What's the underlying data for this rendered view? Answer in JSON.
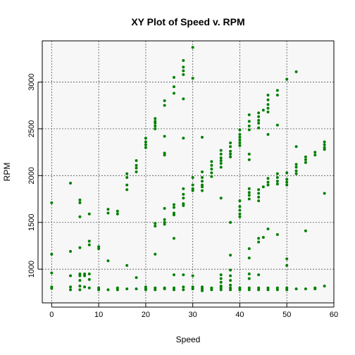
{
  "chart_data": {
    "type": "scatter",
    "title": "XY Plot of Speed v. RPM",
    "xlabel": "Speed",
    "ylabel": "RPM",
    "xlim": [
      -2,
      60
    ],
    "ylim": [
      640,
      3440
    ],
    "xticks": [
      0,
      10,
      20,
      30,
      40,
      50,
      60
    ],
    "yticks": [
      1000,
      1500,
      2000,
      2500,
      3000
    ],
    "grid": true,
    "point_color": "#008000",
    "panel_background": "#f7f7f7",
    "series": [
      {
        "points": [
          [
            0,
            1710
          ],
          [
            0,
            1160
          ],
          [
            0,
            960
          ],
          [
            0,
            810
          ],
          [
            0,
            795
          ],
          [
            4,
            1920
          ],
          [
            4,
            1190
          ],
          [
            4,
            930
          ],
          [
            4,
            810
          ],
          [
            4,
            780
          ],
          [
            6,
            1740
          ],
          [
            6,
            1710
          ],
          [
            6,
            1560
          ],
          [
            6,
            1230
          ],
          [
            6,
            950
          ],
          [
            6,
            930
          ],
          [
            6,
            880
          ],
          [
            6,
            820
          ],
          [
            6,
            780
          ],
          [
            7,
            950
          ],
          [
            7,
            930
          ],
          [
            7,
            810
          ],
          [
            8,
            1590
          ],
          [
            8,
            1300
          ],
          [
            8,
            1260
          ],
          [
            8,
            950
          ],
          [
            8,
            890
          ],
          [
            8,
            800
          ],
          [
            10,
            1240
          ],
          [
            10,
            1220
          ],
          [
            10,
            800
          ],
          [
            10,
            780
          ],
          [
            12,
            1640
          ],
          [
            12,
            1600
          ],
          [
            12,
            1090
          ],
          [
            12,
            780
          ],
          [
            14,
            1620
          ],
          [
            14,
            1590
          ],
          [
            14,
            800
          ],
          [
            14,
            780
          ],
          [
            16,
            2020
          ],
          [
            16,
            1980
          ],
          [
            16,
            1900
          ],
          [
            16,
            1850
          ],
          [
            16,
            1040
          ],
          [
            16,
            790
          ],
          [
            18,
            2160
          ],
          [
            18,
            2110
          ],
          [
            18,
            2080
          ],
          [
            18,
            2040
          ],
          [
            18,
            910
          ],
          [
            18,
            790
          ],
          [
            20,
            2400
          ],
          [
            20,
            2360
          ],
          [
            20,
            2330
          ],
          [
            20,
            2300
          ],
          [
            20,
            810
          ],
          [
            20,
            790
          ],
          [
            20,
            780
          ],
          [
            22,
            2610
          ],
          [
            22,
            2580
          ],
          [
            22,
            2560
          ],
          [
            22,
            2530
          ],
          [
            22,
            2500
          ],
          [
            22,
            1490
          ],
          [
            22,
            1460
          ],
          [
            22,
            1160
          ],
          [
            22,
            800
          ],
          [
            22,
            780
          ],
          [
            24,
            2800
          ],
          [
            24,
            2750
          ],
          [
            24,
            2420
          ],
          [
            24,
            2240
          ],
          [
            24,
            2220
          ],
          [
            24,
            1650
          ],
          [
            24,
            1530
          ],
          [
            24,
            1500
          ],
          [
            24,
            1480
          ],
          [
            24,
            800
          ],
          [
            24,
            790
          ],
          [
            26,
            3050
          ],
          [
            26,
            2950
          ],
          [
            26,
            2880
          ],
          [
            26,
            1690
          ],
          [
            26,
            1660
          ],
          [
            26,
            1600
          ],
          [
            26,
            1580
          ],
          [
            26,
            1330
          ],
          [
            26,
            940
          ],
          [
            26,
            800
          ],
          [
            26,
            780
          ],
          [
            28,
            3230
          ],
          [
            28,
            3160
          ],
          [
            28,
            3120
          ],
          [
            28,
            3080
          ],
          [
            28,
            2820
          ],
          [
            28,
            2400
          ],
          [
            28,
            1860
          ],
          [
            28,
            1800
          ],
          [
            28,
            1760
          ],
          [
            28,
            1700
          ],
          [
            28,
            1680
          ],
          [
            28,
            940
          ],
          [
            28,
            810
          ],
          [
            28,
            780
          ],
          [
            30,
            3370
          ],
          [
            30,
            3040
          ],
          [
            30,
            1980
          ],
          [
            30,
            1900
          ],
          [
            30,
            1860
          ],
          [
            30,
            1840
          ],
          [
            30,
            930
          ],
          [
            30,
            810
          ],
          [
            30,
            790
          ],
          [
            32,
            2410
          ],
          [
            32,
            2040
          ],
          [
            32,
            1980
          ],
          [
            32,
            1940
          ],
          [
            32,
            1900
          ],
          [
            32,
            1880
          ],
          [
            32,
            1840
          ],
          [
            32,
            810
          ],
          [
            32,
            790
          ],
          [
            32,
            770
          ],
          [
            34,
            2150
          ],
          [
            34,
            2110
          ],
          [
            34,
            2070
          ],
          [
            34,
            2030
          ],
          [
            34,
            1990
          ],
          [
            34,
            800
          ],
          [
            34,
            780
          ],
          [
            36,
            2270
          ],
          [
            36,
            2230
          ],
          [
            36,
            2190
          ],
          [
            36,
            2160
          ],
          [
            36,
            2130
          ],
          [
            36,
            2090
          ],
          [
            36,
            1760
          ],
          [
            36,
            940
          ],
          [
            36,
            900
          ],
          [
            36,
            860
          ],
          [
            36,
            820
          ],
          [
            36,
            800
          ],
          [
            36,
            780
          ],
          [
            38,
            2350
          ],
          [
            38,
            2310
          ],
          [
            38,
            2260
          ],
          [
            38,
            2230
          ],
          [
            38,
            2200
          ],
          [
            38,
            1500
          ],
          [
            38,
            1150
          ],
          [
            38,
            990
          ],
          [
            38,
            930
          ],
          [
            38,
            880
          ],
          [
            38,
            830
          ],
          [
            38,
            800
          ],
          [
            38,
            780
          ],
          [
            40,
            2490
          ],
          [
            40,
            2440
          ],
          [
            40,
            2410
          ],
          [
            40,
            2380
          ],
          [
            40,
            2350
          ],
          [
            40,
            2320
          ],
          [
            40,
            1730
          ],
          [
            40,
            1670
          ],
          [
            40,
            1630
          ],
          [
            40,
            1590
          ],
          [
            40,
            1560
          ],
          [
            40,
            800
          ],
          [
            40,
            780
          ],
          [
            42,
            2650
          ],
          [
            42,
            2580
          ],
          [
            42,
            2530
          ],
          [
            42,
            2490
          ],
          [
            42,
            2230
          ],
          [
            42,
            2170
          ],
          [
            42,
            1860
          ],
          [
            42,
            1820
          ],
          [
            42,
            1790
          ],
          [
            42,
            1750
          ],
          [
            42,
            1220
          ],
          [
            42,
            1120
          ],
          [
            42,
            950
          ],
          [
            42,
            900
          ],
          [
            42,
            800
          ],
          [
            42,
            780
          ],
          [
            44,
            2670
          ],
          [
            44,
            2630
          ],
          [
            44,
            2590
          ],
          [
            44,
            2560
          ],
          [
            44,
            2510
          ],
          [
            44,
            1850
          ],
          [
            44,
            1810
          ],
          [
            44,
            1770
          ],
          [
            44,
            1730
          ],
          [
            44,
            1330
          ],
          [
            44,
            1290
          ],
          [
            44,
            940
          ],
          [
            44,
            800
          ],
          [
            44,
            780
          ],
          [
            45,
            2700
          ],
          [
            45,
            1880
          ],
          [
            45,
            1340
          ],
          [
            46,
            2860
          ],
          [
            46,
            2810
          ],
          [
            46,
            2760
          ],
          [
            46,
            2720
          ],
          [
            46,
            2680
          ],
          [
            46,
            2440
          ],
          [
            46,
            1970
          ],
          [
            46,
            1930
          ],
          [
            46,
            1900
          ],
          [
            46,
            1430
          ],
          [
            46,
            800
          ],
          [
            46,
            780
          ],
          [
            48,
            2910
          ],
          [
            48,
            2860
          ],
          [
            48,
            2540
          ],
          [
            48,
            2020
          ],
          [
            48,
            1980
          ],
          [
            48,
            1940
          ],
          [
            48,
            1910
          ],
          [
            48,
            1370
          ],
          [
            48,
            800
          ],
          [
            48,
            780
          ],
          [
            50,
            3030
          ],
          [
            50,
            2030
          ],
          [
            50,
            1960
          ],
          [
            50,
            1930
          ],
          [
            50,
            1900
          ],
          [
            50,
            1110
          ],
          [
            50,
            1040
          ],
          [
            50,
            800
          ],
          [
            50,
            780
          ],
          [
            52,
            3110
          ],
          [
            52,
            2310
          ],
          [
            52,
            2120
          ],
          [
            52,
            2090
          ],
          [
            52,
            2050
          ],
          [
            52,
            2020
          ],
          [
            52,
            790
          ],
          [
            54,
            2200
          ],
          [
            54,
            2170
          ],
          [
            54,
            2140
          ],
          [
            54,
            1410
          ],
          [
            54,
            790
          ],
          [
            56,
            2250
          ],
          [
            56,
            2220
          ],
          [
            56,
            800
          ],
          [
            56,
            790
          ],
          [
            58,
            2360
          ],
          [
            58,
            2330
          ],
          [
            58,
            2300
          ],
          [
            58,
            2280
          ],
          [
            58,
            1810
          ],
          [
            58,
            820
          ]
        ]
      }
    ]
  }
}
